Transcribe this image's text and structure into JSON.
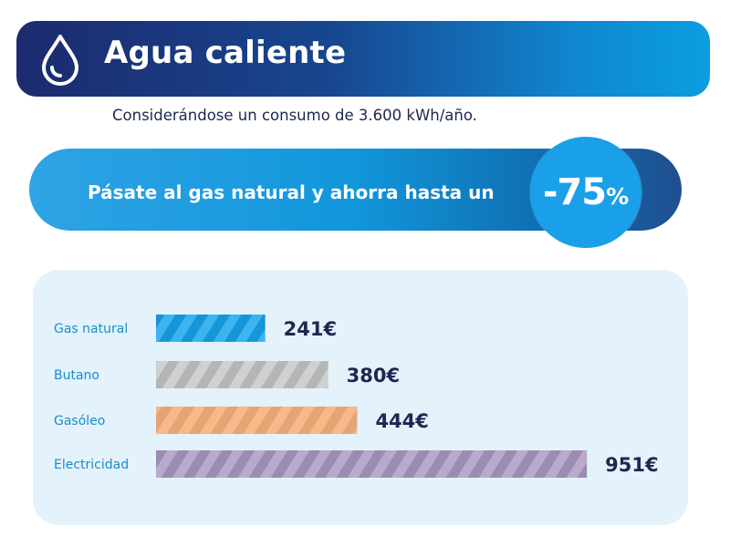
{
  "header": {
    "title": "Agua caliente",
    "icon": "water-drop-icon",
    "colors": {
      "start": "#1d2a6e",
      "end": "#0b9ee0"
    }
  },
  "subtitle": "Considerándose un consumo de 3.600 kWh/año.",
  "promo": {
    "text": "Pásate al gas natural y ahorra hasta un",
    "badge_number": "-75",
    "badge_suffix": "%",
    "colors": {
      "bar": "#1296da",
      "badge": "#1aa0e8"
    }
  },
  "chart_data": {
    "type": "bar",
    "orientation": "horizontal",
    "title": "",
    "xlabel": "",
    "ylabel": "",
    "grid": false,
    "categories": [
      "Gas natural",
      "Butano",
      "Gasóleo",
      "Electricidad"
    ],
    "values": [
      241,
      380,
      444,
      951
    ],
    "value_labels": [
      "241€",
      "380€",
      "444€",
      "951€"
    ],
    "unit": "€",
    "colors": [
      {
        "fill": "#3db4ee",
        "stripe": "#1596d8"
      },
      {
        "fill": "#cfd0d0",
        "stripe": "#b4b5b5"
      },
      {
        "fill": "#f5b98a",
        "stripe": "#e6a374"
      },
      {
        "fill": "#b9a9cd",
        "stripe": "#9c8bb2"
      }
    ],
    "label_color": "#1b8ccc",
    "value_color": "#1f2650"
  }
}
